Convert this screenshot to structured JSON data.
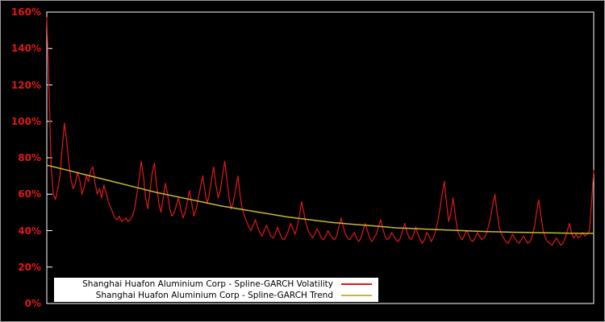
{
  "chart_data": {
    "type": "line",
    "title": "",
    "xlabel": "",
    "ylabel": "",
    "ylim": [
      0,
      160
    ],
    "background_color": "#000000",
    "frame_color": "#ffffff",
    "axis_label_color": "#e11818",
    "grid": false,
    "legend_position": "bottom-left",
    "ytick_values": [
      0,
      20,
      40,
      60,
      80,
      100,
      120,
      140,
      160
    ],
    "ytick_labels": [
      "0%",
      "20%",
      "40%",
      "60%",
      "80%",
      "100%",
      "120%",
      "140%",
      "160%"
    ],
    "series": [
      {
        "name": "Shanghai Huafon Aluminium Corp - Spline-GARCH Volatility",
        "color": "#e11818",
        "values": [
          157,
          120,
          75,
          60,
          57,
          63,
          70,
          85,
          99,
          90,
          78,
          68,
          63,
          66,
          72,
          68,
          60,
          64,
          70,
          67,
          73,
          75,
          66,
          60,
          63,
          58,
          65,
          61,
          56,
          53,
          50,
          47,
          46,
          48,
          45,
          46,
          47,
          45,
          46,
          48,
          52,
          60,
          68,
          78,
          70,
          58,
          52,
          62,
          72,
          77,
          65,
          55,
          50,
          58,
          66,
          60,
          52,
          48,
          50,
          54,
          58,
          52,
          47,
          50,
          56,
          62,
          55,
          48,
          52,
          58,
          64,
          70,
          62,
          55,
          60,
          68,
          75,
          65,
          58,
          62,
          70,
          78,
          68,
          58,
          52,
          56,
          63,
          70,
          60,
          52,
          48,
          45,
          42,
          40,
          43,
          46,
          42,
          39,
          37,
          40,
          43,
          40,
          37,
          36,
          38,
          42,
          39,
          36,
          35,
          37,
          40,
          44,
          41,
          38,
          42,
          48,
          56,
          50,
          44,
          40,
          38,
          36,
          38,
          41,
          39,
          36,
          35,
          37,
          40,
          38,
          36,
          35,
          37,
          42,
          47,
          42,
          38,
          36,
          35,
          37,
          39,
          36,
          34,
          36,
          40,
          44,
          40,
          36,
          34,
          36,
          38,
          42,
          46,
          41,
          37,
          35,
          36,
          39,
          37,
          35,
          34,
          36,
          40,
          44,
          39,
          36,
          35,
          38,
          42,
          38,
          35,
          33,
          35,
          39,
          37,
          34,
          36,
          40,
          45,
          52,
          60,
          67,
          55,
          45,
          50,
          58,
          48,
          40,
          37,
          35,
          37,
          40,
          38,
          35,
          34,
          36,
          39,
          37,
          35,
          36,
          38,
          42,
          47,
          54,
          60,
          50,
          42,
          38,
          36,
          34,
          33,
          35,
          38,
          36,
          34,
          33,
          35,
          37,
          35,
          33,
          34,
          37,
          42,
          50,
          57,
          48,
          40,
          36,
          34,
          33,
          32,
          34,
          36,
          34,
          32,
          33,
          36,
          40,
          44,
          38,
          36,
          38,
          36,
          37,
          39,
          37,
          38,
          40,
          55,
          73
        ]
      },
      {
        "name": "Shanghai Huafon Aluminium Corp - Spline-GARCH Trend",
        "color": "#c9b637",
        "x": [
          0,
          0.04,
          0.08,
          0.12,
          0.16,
          0.2,
          0.24,
          0.28,
          0.32,
          0.36,
          0.4,
          0.44,
          0.48,
          0.52,
          0.56,
          0.6,
          0.64,
          0.68,
          0.72,
          0.76,
          0.8,
          0.84,
          0.88,
          0.92,
          0.96,
          1
        ],
        "values": [
          76,
          73,
          70,
          67,
          64,
          61,
          58.5,
          56,
          53.5,
          51.5,
          49.5,
          47.5,
          46,
          44.5,
          43.5,
          42.5,
          41.5,
          41,
          40.5,
          40,
          39.5,
          39.2,
          39,
          38.8,
          38.6,
          38.5
        ]
      }
    ]
  }
}
